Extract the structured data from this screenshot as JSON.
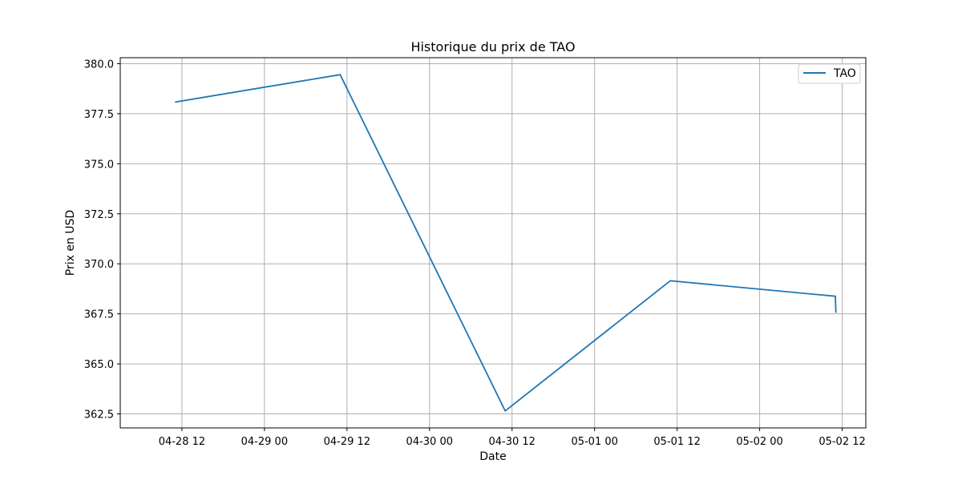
{
  "chart_data": {
    "type": "line",
    "title": "Historique du prix de TAO",
    "xlabel": "Date",
    "ylabel": "Prix en USD",
    "grid": true,
    "legend_position": "top-right",
    "x_ticks": [
      "2024-04-28 12:00",
      "2024-04-29 00:00",
      "2024-04-29 12:00",
      "2024-04-30 00:00",
      "2024-04-30 12:00",
      "2024-05-01 00:00",
      "2024-05-01 12:00",
      "2024-05-02 00:00",
      "2024-05-02 12:00"
    ],
    "x_tick_labels": [
      "04-28 12",
      "04-29 00",
      "04-29 12",
      "04-30 00",
      "04-30 12",
      "05-01 00",
      "05-01 12",
      "05-02 00",
      "05-02 12"
    ],
    "xlim": [
      "2024-04-28 03:02",
      "2024-05-02 15:26"
    ],
    "y_ticks": [
      362.5,
      365.0,
      367.5,
      370.0,
      372.5,
      375.0,
      377.5,
      380.0
    ],
    "y_tick_labels": [
      "362.5",
      "365.0",
      "367.5",
      "370.0",
      "372.5",
      "375.0",
      "377.5",
      "380.0"
    ],
    "ylim": [
      361.8,
      380.3
    ],
    "series": [
      {
        "name": "TAO",
        "color": "#1f77b4",
        "points": [
          {
            "x": "2024-04-28 11:00",
            "y": 378.08
          },
          {
            "x": "2024-04-29 11:00",
            "y": 379.45
          },
          {
            "x": "2024-04-30 11:00",
            "y": 362.65
          },
          {
            "x": "2024-05-01 11:00",
            "y": 369.15
          },
          {
            "x": "2024-05-02 11:00",
            "y": 368.38
          },
          {
            "x": "2024-05-02 11:05",
            "y": 367.55
          }
        ]
      }
    ]
  }
}
